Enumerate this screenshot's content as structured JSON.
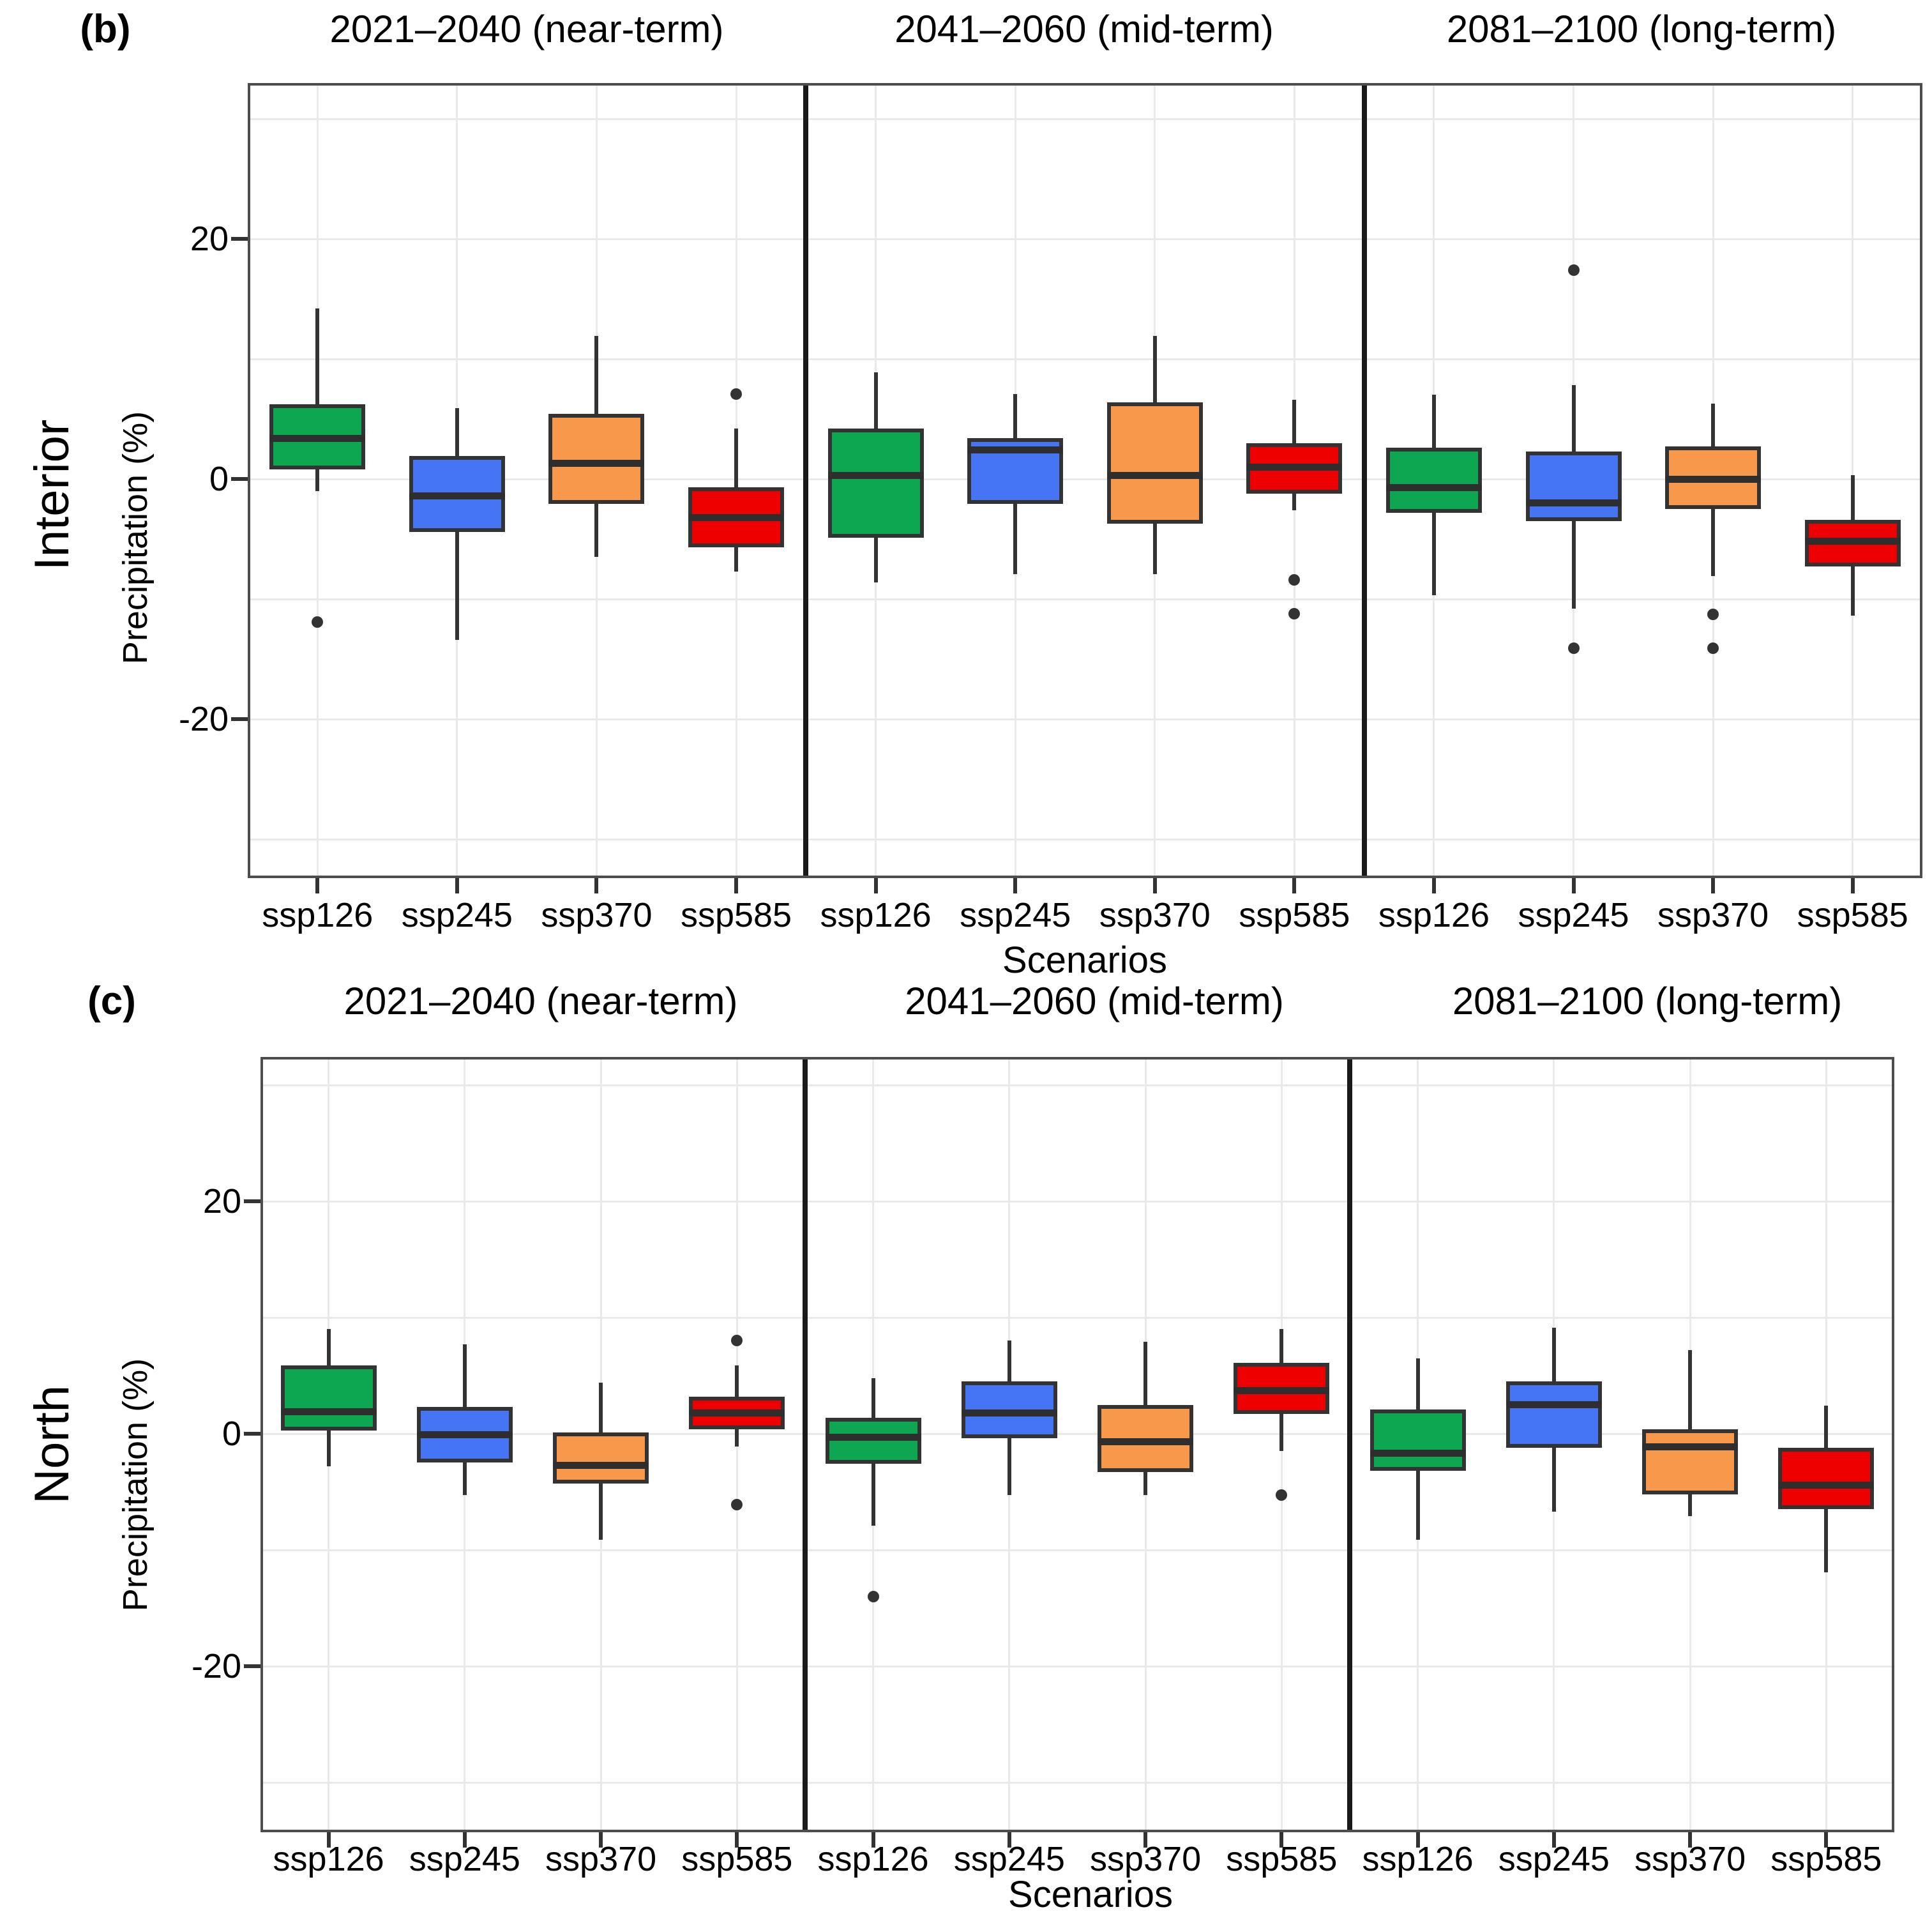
{
  "page": {
    "background": "#FFFFFF"
  },
  "chart_data": {
    "type": "boxplot",
    "layout": "two stacked faceted panels, 3 facets per panel, 4 boxes per facet, grid on, no legend",
    "colors": {
      "ssp126": "#0CA750",
      "ssp245": "#4575F4",
      "ssp370": "#F8984B",
      "ssp585": "#EF0000",
      "box_border": "#333333",
      "median": "#2E2E2E",
      "outlier": "#333333",
      "gridline": "#E9E9E9",
      "facet_separator": "#1A1A1A",
      "panel_border": "#4D4D4D",
      "tick_mark": "#333333"
    },
    "panels": [
      {
        "tag": "(b)",
        "strip_label": "Interior",
        "ylabel": "Precipitation (%)",
        "xlabel": "Scenarios",
        "ytick_labels": [
          "20",
          "0",
          "-20"
        ],
        "ytick_values": [
          20,
          0,
          -20
        ],
        "ylim": [
          -33,
          33
        ],
        "grid_step": 10,
        "facets": [
          {
            "title": "2021–2040 (near-term)",
            "categories": [
              "ssp126",
              "ssp245",
              "ssp370",
              "ssp585"
            ],
            "boxes": [
              {
                "scenario": "ssp126",
                "whisker_low": -1.0,
                "q1": 0.8,
                "median": 3.4,
                "q3": 6.2,
                "whisker_high": 14.2,
                "outliers": [
                  -11.9
                ]
              },
              {
                "scenario": "ssp245",
                "whisker_low": -13.4,
                "q1": -4.4,
                "median": -1.4,
                "q3": 1.9,
                "whisker_high": 5.9,
                "outliers": []
              },
              {
                "scenario": "ssp370",
                "whisker_low": -6.5,
                "q1": -2.1,
                "median": 1.3,
                "q3": 5.4,
                "whisker_high": 11.9,
                "outliers": []
              },
              {
                "scenario": "ssp585",
                "whisker_low": -7.7,
                "q1": -5.7,
                "median": -3.2,
                "q3": -0.7,
                "whisker_high": 4.2,
                "outliers": [
                  7.1
                ]
              }
            ]
          },
          {
            "title": "2041–2060 (mid-term)",
            "categories": [
              "ssp126",
              "ssp245",
              "ssp370",
              "ssp585"
            ],
            "boxes": [
              {
                "scenario": "ssp126",
                "whisker_low": -8.6,
                "q1": -4.9,
                "median": 0.3,
                "q3": 4.2,
                "whisker_high": 8.9,
                "outliers": []
              },
              {
                "scenario": "ssp245",
                "whisker_low": -7.9,
                "q1": -2.1,
                "median": 2.4,
                "q3": 3.4,
                "whisker_high": 7.1,
                "outliers": []
              },
              {
                "scenario": "ssp370",
                "whisker_low": -7.9,
                "q1": -3.7,
                "median": 0.3,
                "q3": 6.4,
                "whisker_high": 11.9,
                "outliers": []
              },
              {
                "scenario": "ssp585",
                "whisker_low": -2.6,
                "q1": -1.2,
                "median": 1.0,
                "q3": 3.0,
                "whisker_high": 6.6,
                "outliers": [
                  -8.4,
                  -11.2
                ]
              }
            ]
          },
          {
            "title": "2081–2100 (long-term)",
            "categories": [
              "ssp126",
              "ssp245",
              "ssp370",
              "ssp585"
            ],
            "boxes": [
              {
                "scenario": "ssp126",
                "whisker_low": -9.7,
                "q1": -2.8,
                "median": -0.7,
                "q3": 2.6,
                "whisker_high": 7.0,
                "outliers": []
              },
              {
                "scenario": "ssp245",
                "whisker_low": -10.8,
                "q1": -3.5,
                "median": -2.0,
                "q3": 2.3,
                "whisker_high": 7.8,
                "outliers": [
                  17.4,
                  -14.1
                ]
              },
              {
                "scenario": "ssp370",
                "whisker_low": -8.1,
                "q1": -2.5,
                "median": 0.0,
                "q3": 2.7,
                "whisker_high": 6.3,
                "outliers": [
                  -11.3,
                  -14.1
                ]
              },
              {
                "scenario": "ssp585",
                "whisker_low": -11.4,
                "q1": -7.3,
                "median": -5.2,
                "q3": -3.4,
                "whisker_high": 0.3,
                "outliers": []
              }
            ]
          }
        ]
      },
      {
        "tag": "(c)",
        "strip_label": "North",
        "ylabel": "Precipitation (%)",
        "xlabel": "Scenarios",
        "ytick_labels": [
          "20",
          "0",
          "-20"
        ],
        "ytick_values": [
          20,
          0,
          -20
        ],
        "ylim": [
          -33,
          33
        ],
        "grid_step": 10,
        "facets": [
          {
            "title": "2021–2040 (near-term)",
            "categories": [
              "ssp126",
              "ssp245",
              "ssp370",
              "ssp585"
            ],
            "boxes": [
              {
                "scenario": "ssp126",
                "whisker_low": -2.8,
                "q1": 0.3,
                "median": 1.9,
                "q3": 5.9,
                "whisker_high": 9.0,
                "outliers": []
              },
              {
                "scenario": "ssp245",
                "whisker_low": -5.3,
                "q1": -2.5,
                "median": -0.1,
                "q3": 2.3,
                "whisker_high": 7.7,
                "outliers": []
              },
              {
                "scenario": "ssp370",
                "whisker_low": -9.1,
                "q1": -4.3,
                "median": -2.7,
                "q3": 0.1,
                "whisker_high": 4.4,
                "outliers": []
              },
              {
                "scenario": "ssp585",
                "whisker_low": -1.1,
                "q1": 0.4,
                "median": 1.8,
                "q3": 3.2,
                "whisker_high": 5.9,
                "outliers": [
                  8.0,
                  -6.1
                ]
              }
            ]
          },
          {
            "title": "2041–2060 (mid-term)",
            "categories": [
              "ssp126",
              "ssp245",
              "ssp370",
              "ssp585"
            ],
            "boxes": [
              {
                "scenario": "ssp126",
                "whisker_low": -7.9,
                "q1": -2.6,
                "median": -0.3,
                "q3": 1.4,
                "whisker_high": 4.8,
                "outliers": [
                  -14.0
                ]
              },
              {
                "scenario": "ssp245",
                "whisker_low": -5.3,
                "q1": -0.4,
                "median": 1.8,
                "q3": 4.5,
                "whisker_high": 8.0,
                "outliers": []
              },
              {
                "scenario": "ssp370",
                "whisker_low": -5.3,
                "q1": -3.3,
                "median": -0.7,
                "q3": 2.5,
                "whisker_high": 7.9,
                "outliers": []
              },
              {
                "scenario": "ssp585",
                "whisker_low": -1.5,
                "q1": 1.7,
                "median": 3.7,
                "q3": 6.1,
                "whisker_high": 9.0,
                "outliers": [
                  -5.3
                ]
              }
            ]
          },
          {
            "title": "2081–2100 (long-term)",
            "categories": [
              "ssp126",
              "ssp245",
              "ssp370",
              "ssp585"
            ],
            "boxes": [
              {
                "scenario": "ssp126",
                "whisker_low": -9.1,
                "q1": -3.2,
                "median": -1.7,
                "q3": 2.1,
                "whisker_high": 6.5,
                "outliers": []
              },
              {
                "scenario": "ssp245",
                "whisker_low": -6.7,
                "q1": -1.2,
                "median": 2.5,
                "q3": 4.5,
                "whisker_high": 9.1,
                "outliers": []
              },
              {
                "scenario": "ssp370",
                "whisker_low": -7.1,
                "q1": -5.2,
                "median": -1.1,
                "q3": 0.4,
                "whisker_high": 7.2,
                "outliers": []
              },
              {
                "scenario": "ssp585",
                "whisker_low": -11.9,
                "q1": -6.5,
                "median": -4.4,
                "q3": -1.2,
                "whisker_high": 2.4,
                "outliers": []
              }
            ]
          }
        ]
      }
    ]
  }
}
